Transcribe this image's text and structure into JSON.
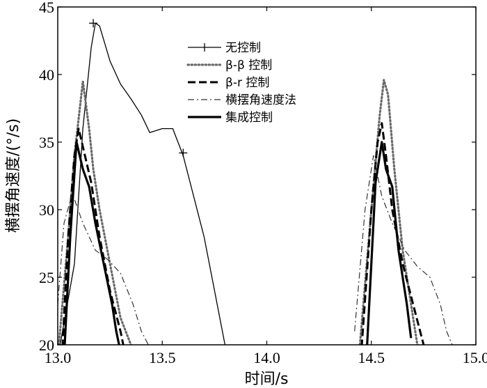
{
  "chart_data": {
    "type": "line",
    "title": "",
    "xlabel": "时间/s",
    "ylabel": "横摆角速度/(°/s)",
    "xlim": [
      13.0,
      15.0
    ],
    "ylim": [
      20,
      45
    ],
    "xticks": [
      "13.0",
      "13.5",
      "14.0",
      "14.5",
      "15.0"
    ],
    "yticks": [
      "20",
      "25",
      "30",
      "35",
      "40",
      "45"
    ],
    "grid": false,
    "legend_position": "top-right",
    "series": [
      {
        "name": "无控制",
        "style": "solid-plus",
        "color": "#000000",
        "segments": [
          [
            [
              13.0,
              19
            ],
            [
              13.08,
              26
            ],
            [
              13.12,
              36
            ],
            [
              13.16,
              42
            ],
            [
              13.18,
              43.8
            ],
            [
              13.2,
              43.6
            ],
            [
              13.25,
              41
            ],
            [
              13.3,
              39.3
            ],
            [
              13.35,
              38.2
            ],
            [
              13.4,
              37
            ],
            [
              13.44,
              35.7
            ],
            [
              13.5,
              36
            ],
            [
              13.55,
              36
            ],
            [
              13.6,
              34
            ],
            [
              13.7,
              28
            ],
            [
              13.75,
              24
            ],
            [
              13.8,
              20
            ],
            [
              13.82,
              19
            ]
          ]
        ],
        "markers": [
          [
            13.17,
            43.8
          ],
          [
            13.6,
            34.2
          ]
        ]
      },
      {
        "name": "β-β 控制",
        "style": "dotted",
        "color": "#6a6a6a",
        "segments": [
          [
            [
              13.0,
              19
            ],
            [
              13.05,
              28
            ],
            [
              13.08,
              34
            ],
            [
              13.12,
              39.5
            ],
            [
              13.15,
              36
            ],
            [
              13.17,
              33
            ],
            [
              13.2,
              30
            ],
            [
              13.25,
              26
            ],
            [
              13.3,
              22
            ],
            [
              13.35,
              20
            ],
            [
              13.38,
              19
            ]
          ],
          [
            [
              14.44,
              19
            ],
            [
              14.5,
              30
            ],
            [
              14.54,
              37
            ],
            [
              14.56,
              39.6
            ],
            [
              14.58,
              38.5
            ],
            [
              14.61,
              33
            ],
            [
              14.65,
              27
            ],
            [
              14.7,
              22
            ],
            [
              14.72,
              20
            ],
            [
              14.73,
              19
            ]
          ]
        ]
      },
      {
        "name": "β-r 控制",
        "style": "dashed",
        "color": "#000000",
        "segments": [
          [
            [
              13.02,
              19
            ],
            [
              13.05,
              28
            ],
            [
              13.08,
              34
            ],
            [
              13.1,
              36
            ],
            [
              13.13,
              34
            ],
            [
              13.16,
              32
            ],
            [
              13.2,
              28
            ],
            [
              13.25,
              24
            ],
            [
              13.3,
              21
            ],
            [
              13.32,
              19.5
            ]
          ],
          [
            [
              14.45,
              19
            ],
            [
              14.5,
              30
            ],
            [
              14.53,
              35
            ],
            [
              14.55,
              36.4
            ],
            [
              14.57,
              34
            ],
            [
              14.6,
              30
            ],
            [
              14.65,
              26
            ],
            [
              14.7,
              23
            ],
            [
              14.75,
              20
            ],
            [
              14.77,
              19
            ]
          ]
        ]
      },
      {
        "name": "横摆角速度法",
        "style": "dash-dot",
        "color": "#333333",
        "segments": [
          [
            [
              13.0,
              23
            ],
            [
              13.03,
              29
            ],
            [
              13.07,
              31.2
            ],
            [
              13.12,
              29
            ],
            [
              13.18,
              27
            ],
            [
              13.24,
              26.3
            ],
            [
              13.3,
              25.3
            ],
            [
              13.36,
              23
            ],
            [
              13.4,
              21
            ],
            [
              13.45,
              19.5
            ]
          ],
          [
            [
              14.42,
              21
            ],
            [
              14.47,
              30
            ],
            [
              14.51,
              34
            ],
            [
              14.55,
              31
            ],
            [
              14.6,
              29
            ],
            [
              14.66,
              27
            ],
            [
              14.72,
              25.8
            ],
            [
              14.78,
              25
            ],
            [
              14.83,
              23
            ],
            [
              14.86,
              21
            ],
            [
              14.9,
              19.5
            ]
          ]
        ]
      },
      {
        "name": "集成控制",
        "style": "thick-solid",
        "color": "#000000",
        "segments": [
          [
            [
              13.03,
              19
            ],
            [
              13.06,
              28
            ],
            [
              13.09,
              35
            ],
            [
              13.12,
              33
            ],
            [
              13.15,
              31.7
            ],
            [
              13.18,
              29
            ],
            [
              13.22,
              26
            ],
            [
              13.26,
              23
            ],
            [
              13.28,
              21
            ],
            [
              13.3,
              19.5
            ]
          ],
          [
            [
              14.48,
              20
            ],
            [
              14.52,
              32
            ],
            [
              14.55,
              35
            ],
            [
              14.57,
              33
            ],
            [
              14.6,
              31.7
            ],
            [
              14.63,
              27
            ],
            [
              14.67,
              23
            ],
            [
              14.69,
              20.5
            ]
          ]
        ]
      }
    ]
  }
}
